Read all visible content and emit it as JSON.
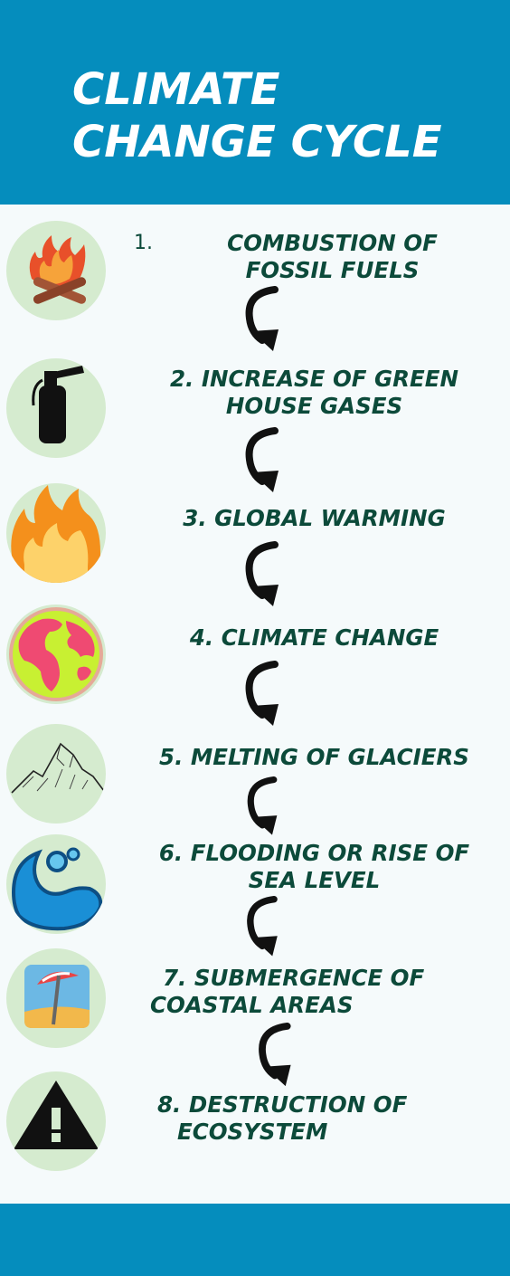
{
  "header": {
    "title_line1": "CLIMATE",
    "title_line2": "CHANGE CYCLE",
    "color": "#058dbd"
  },
  "steps": [
    {
      "number": "1.",
      "line1": "COMBUSTION OF",
      "line2": "FOSSIL FUELS",
      "icon": "campfire-icon"
    },
    {
      "line1": "2. INCREASE OF GREEN",
      "line2": "HOUSE GASES",
      "icon": "fire-extinguisher-icon"
    },
    {
      "line1": "3. GLOBAL WARMING",
      "icon": "flame-icon"
    },
    {
      "line1": "4. CLIMATE CHANGE",
      "icon": "globe-icon"
    },
    {
      "line1": "5. MELTING OF GLACIERS",
      "icon": "mountain-icon"
    },
    {
      "line1": "6. FLOODING OR RISE OF",
      "line2": "SEA LEVEL",
      "icon": "water-wave-icon"
    },
    {
      "line1": "7. SUBMERGENCE OF",
      "line2": "COASTAL AREAS",
      "icon": "beach-umbrella-icon"
    },
    {
      "line1": "8. DESTRUCTION OF",
      "line2": "ECOSYSTEM",
      "icon": "warning-icon"
    }
  ],
  "colors": {
    "background": "#f5fafb",
    "text": "#0c4a3a",
    "icon_circle": "#d5ebcf"
  }
}
